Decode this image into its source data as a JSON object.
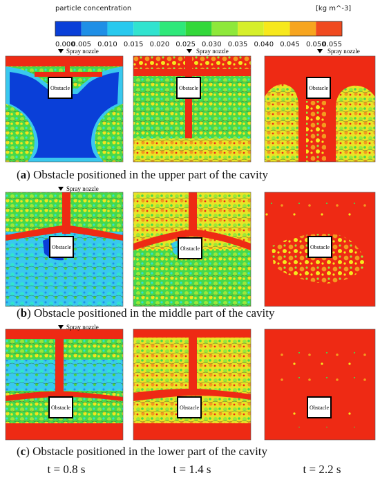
{
  "legend": {
    "title": "particle concentration",
    "unit": "[kg m^-3]",
    "ticks": [
      "0.000",
      "0.005",
      "0.010",
      "0.015",
      "0.020",
      "0.025",
      "0.030",
      "0.035",
      "0.040",
      "0.045",
      "0.050",
      "0.055"
    ],
    "colors": [
      "#0a3fd8",
      "#1f8fe6",
      "#28c9ee",
      "#31e3cf",
      "#2fe87a",
      "#33d83a",
      "#8ee83a",
      "#d6ef2a",
      "#f7e81c",
      "#f7a51f",
      "#f04a1f"
    ]
  },
  "nozzle_label": "Spray nozzle",
  "obstacle_label": "Obstacle",
  "rows": [
    {
      "caption_open": "(",
      "caption_letter": "a",
      "caption_rest": ") Obstacle positioned in the upper part of the cavity"
    },
    {
      "caption_open": "(",
      "caption_letter": "b",
      "caption_rest": ") Obstacle positioned in the middle part of the cavity"
    },
    {
      "caption_open": "(",
      "caption_letter": "c",
      "caption_rest": ") Obstacle positioned in the lower part of the cavity"
    }
  ],
  "times": [
    "t = 0.8 s",
    "t = 1.4 s",
    "t = 2.2 s"
  ],
  "colors": {
    "high": "#ee2a14",
    "mid_orange": "#f39a1f",
    "yellow": "#f5e81e",
    "green": "#3ad93e",
    "lime": "#9be83a",
    "cyan": "#2fd6e0",
    "light_blue": "#39b6ee",
    "blue": "#0a3fd8",
    "contour": "#2a2a2a"
  }
}
